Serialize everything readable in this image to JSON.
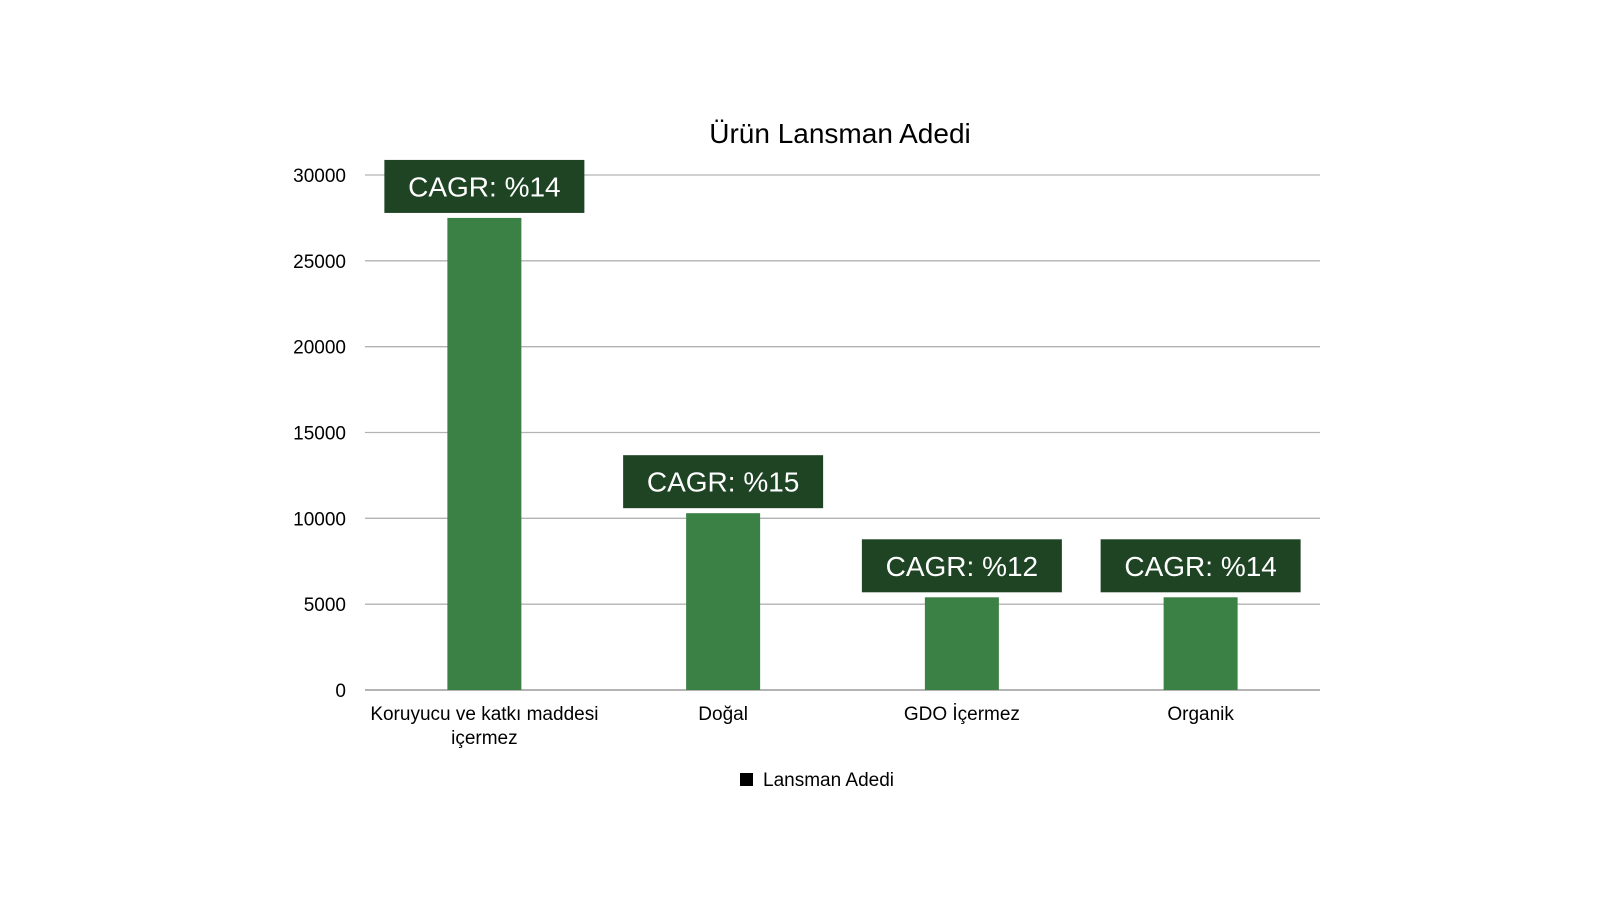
{
  "chart_data": {
    "type": "bar",
    "title": "Ürün Lansman Adedi",
    "categories": [
      [
        "Koruyucu ve katkı maddesi",
        "içermez"
      ],
      [
        "Doğal"
      ],
      [
        "GDO İçermez"
      ],
      [
        "Organik"
      ]
    ],
    "series": [
      {
        "name": "Lansman Adedi",
        "values": [
          27500,
          10300,
          5400,
          5400
        ],
        "color": "#3b8145"
      }
    ],
    "annotations": [
      "CAGR: %14",
      "CAGR: %15",
      "CAGR: %12",
      "CAGR: %14"
    ],
    "annotation_color": "#1e4424",
    "ylim": [
      0,
      30000
    ],
    "yticks": [
      0,
      5000,
      10000,
      15000,
      20000,
      25000,
      30000
    ],
    "grid": true,
    "legend_position": "bottom"
  }
}
